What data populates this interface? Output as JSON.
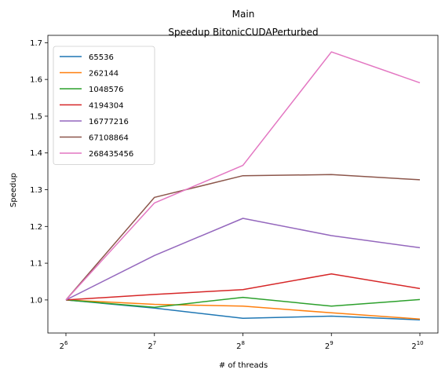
{
  "chart_data": {
    "type": "line",
    "title": "Main",
    "subtitle": "Speedup BitonicCUDAPerturbed",
    "xlabel": "# of threads",
    "ylabel": "Speedup",
    "x_scale": "log2",
    "x": [
      64,
      128,
      256,
      512,
      1024
    ],
    "x_tick_labels": [
      {
        "base": "2",
        "exp": "6"
      },
      {
        "base": "2",
        "exp": "7"
      },
      {
        "base": "2",
        "exp": "8"
      },
      {
        "base": "2",
        "exp": "9"
      },
      {
        "base": "2",
        "exp": "10"
      }
    ],
    "ylim": [
      0.91,
      1.72
    ],
    "y_ticks": [
      1.0,
      1.1,
      1.2,
      1.3,
      1.4,
      1.5,
      1.6,
      1.7
    ],
    "y_tick_labels": [
      "1.0",
      "1.1",
      "1.2",
      "1.3",
      "1.4",
      "1.5",
      "1.6",
      "1.7"
    ],
    "grid": false,
    "legend_position": "top-left",
    "series": [
      {
        "name": "65536",
        "color": "#1f77b4",
        "values": [
          1.0,
          0.978,
          0.95,
          0.956,
          0.946
        ]
      },
      {
        "name": "262144",
        "color": "#ff7f0e",
        "values": [
          1.0,
          0.988,
          0.983,
          0.965,
          0.948
        ]
      },
      {
        "name": "1048576",
        "color": "#2ca02c",
        "values": [
          1.0,
          0.98,
          1.007,
          0.983,
          1.001
        ]
      },
      {
        "name": "4194304",
        "color": "#d62728",
        "values": [
          1.0,
          1.015,
          1.028,
          1.071,
          1.031
        ]
      },
      {
        "name": "16777216",
        "color": "#9467bd",
        "values": [
          1.0,
          1.121,
          1.222,
          1.175,
          1.142
        ]
      },
      {
        "name": "67108864",
        "color": "#8c564b",
        "values": [
          1.0,
          1.279,
          1.338,
          1.341,
          1.327
        ]
      },
      {
        "name": "268435456",
        "color": "#e377c2",
        "values": [
          1.0,
          1.264,
          1.366,
          1.675,
          1.591
        ]
      }
    ]
  }
}
